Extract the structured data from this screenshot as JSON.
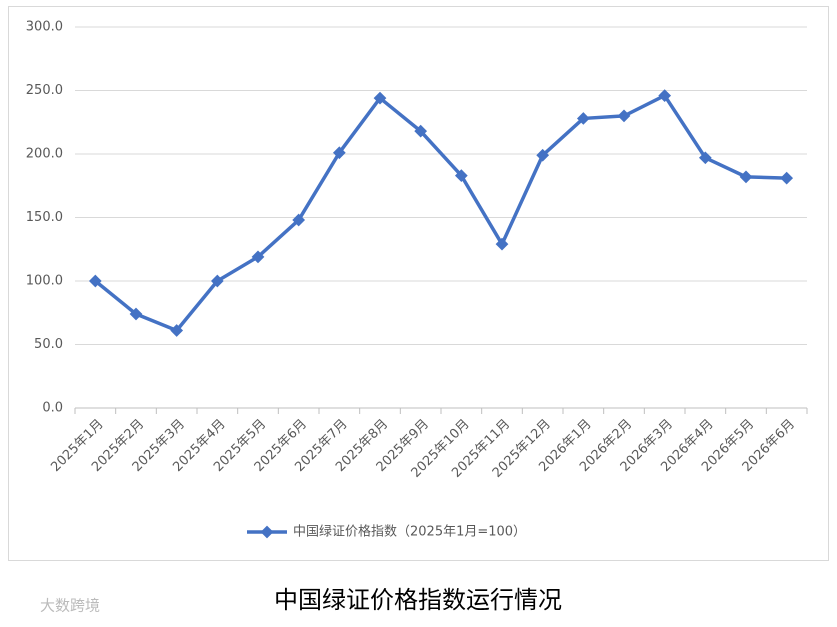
{
  "chart_data": {
    "type": "line",
    "title": "中国绿证价格指数运行情况",
    "watermark": "大数跨境",
    "categories": [
      "2025年1月",
      "2025年2月",
      "2025年3月",
      "2025年4月",
      "2025年5月",
      "2025年6月",
      "2025年7月",
      "2025年8月",
      "2025年9月",
      "2025年10月",
      "2025年11月",
      "2025年12月",
      "2026年1月",
      "2026年2月",
      "2026年3月",
      "2026年4月",
      "2026年5月",
      "2026年6月"
    ],
    "series": [
      {
        "name": "中国绿证价格指数（2025年1月=100）",
        "color": "#4472c4",
        "values": [
          100,
          74,
          61,
          100,
          119,
          148,
          201,
          244,
          218,
          183,
          129,
          199,
          228,
          230,
          246,
          197,
          182,
          181
        ]
      }
    ],
    "ylim": [
      0,
      300
    ],
    "yticks": [
      {
        "value": 0,
        "label": "0.0"
      },
      {
        "value": 50,
        "label": "50.0"
      },
      {
        "value": 100,
        "label": "100.0"
      },
      {
        "value": 150,
        "label": "150.0"
      },
      {
        "value": 200,
        "label": "200.0"
      },
      {
        "value": 250,
        "label": "250.0"
      },
      {
        "value": 300,
        "label": "300.0"
      }
    ],
    "grid": true,
    "legend": "bottom"
  }
}
